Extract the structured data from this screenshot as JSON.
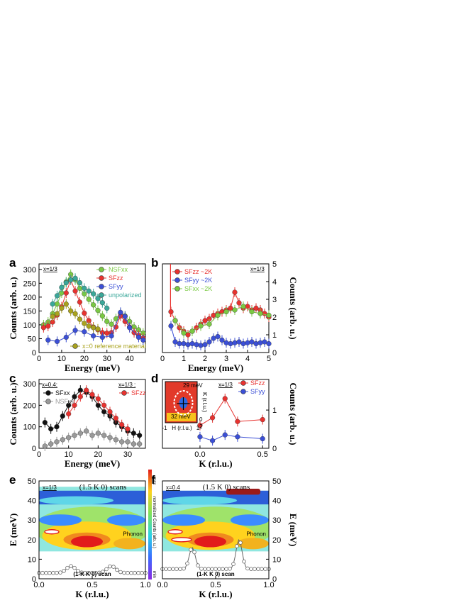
{
  "chart_data": [
    {
      "id": "a",
      "type": "line",
      "letter": "a",
      "tag": "x=1/3",
      "xlabel": "Energy (meV)",
      "ylabel": "Counts (arb. u.)",
      "xlim": [
        0,
        47
      ],
      "ylim": [
        0,
        320
      ],
      "xticks": [
        0,
        10,
        20,
        30,
        40
      ],
      "yticks": [
        0,
        50,
        100,
        150,
        200,
        250,
        300
      ],
      "series": [
        {
          "name": "NSFxx",
          "color": "#7ac943",
          "x": [
            2,
            4,
            6,
            8,
            10,
            12,
            14,
            16,
            18,
            20,
            22,
            24,
            26,
            28,
            30,
            32,
            34,
            36,
            38,
            40,
            42,
            44,
            46
          ],
          "y": [
            100,
            110,
            140,
            175,
            215,
            255,
            282,
            262,
            232,
            212,
            192,
            172,
            152,
            132,
            112,
            102,
            122,
            142,
            132,
            112,
            92,
            82,
            70
          ]
        },
        {
          "name": "SFzz",
          "color": "#e8322f",
          "x": [
            2,
            4,
            6,
            8,
            10,
            12,
            14,
            16,
            18,
            20,
            22,
            24,
            26,
            28,
            30,
            32,
            34,
            36,
            38,
            40,
            42,
            44,
            46
          ],
          "y": [
            90,
            95,
            110,
            135,
            165,
            215,
            262,
            222,
            182,
            142,
            115,
            92,
            82,
            72,
            70,
            72,
            92,
            132,
            112,
            92,
            72,
            62,
            52
          ]
        },
        {
          "name": "SFyy",
          "color": "#3b4fd6",
          "x": [
            4,
            8,
            12,
            16,
            20,
            24,
            28,
            32,
            36,
            38,
            40,
            44,
            46
          ],
          "y": [
            45,
            40,
            55,
            80,
            75,
            60,
            55,
            60,
            145,
            130,
            90,
            55,
            45
          ]
        },
        {
          "name": "unpolarized",
          "color": "#3aa89a",
          "x": [
            6,
            8,
            10,
            12,
            14,
            16,
            18,
            20,
            22,
            24,
            26,
            28,
            30
          ],
          "y": [
            175,
            205,
            235,
            252,
            262,
            268,
            252,
            232,
            222,
            212,
            195,
            180,
            160
          ]
        },
        {
          "name": "x=0 reference material",
          "color": "#a9a21d",
          "x": [
            6,
            8,
            10,
            12,
            14,
            16,
            18,
            20,
            22,
            24,
            26
          ],
          "y": [
            130,
            140,
            160,
            175,
            150,
            140,
            120,
            105,
            95,
            90,
            85
          ]
        }
      ]
    },
    {
      "id": "b",
      "type": "line",
      "letter": "b",
      "tag": "x=1/3",
      "xlabel": "Energy (meV)",
      "ylabel": "Counts (arb. u.)",
      "xlim": [
        0,
        5
      ],
      "ylim": [
        0,
        5
      ],
      "xticks": [
        0,
        1,
        2,
        3,
        4,
        5
      ],
      "yticks": [
        0,
        1,
        2,
        3,
        4,
        5
      ],
      "series": [
        {
          "name": "SFzz ~2K",
          "color": "#e8322f",
          "x": [
            0.4,
            0.6,
            0.8,
            1.0,
            1.2,
            1.4,
            1.6,
            1.8,
            2.0,
            2.2,
            2.4,
            2.6,
            2.8,
            3.0,
            3.2,
            3.4,
            3.6,
            3.8,
            4.0,
            4.2,
            4.4,
            4.6,
            4.8,
            5.0
          ],
          "y": [
            2.3,
            1.8,
            1.4,
            1.2,
            1.0,
            1.2,
            1.4,
            1.6,
            1.8,
            1.9,
            2.1,
            2.2,
            2.3,
            2.4,
            2.5,
            3.4,
            2.8,
            2.5,
            2.6,
            2.4,
            2.5,
            2.4,
            2.2,
            2.0
          ]
        },
        {
          "name": "SFyy ~2K",
          "color": "#3b4fd6",
          "x": [
            0.4,
            0.6,
            0.8,
            1.0,
            1.2,
            1.4,
            1.6,
            1.8,
            2.0,
            2.2,
            2.4,
            2.6,
            2.8,
            3.0,
            3.2,
            3.4,
            3.6,
            3.8,
            4.0,
            4.2,
            4.4,
            4.6,
            4.8,
            5.0
          ],
          "y": [
            1.5,
            0.6,
            0.5,
            0.5,
            0.45,
            0.5,
            0.45,
            0.4,
            0.45,
            0.6,
            0.8,
            0.9,
            0.7,
            0.55,
            0.5,
            0.55,
            0.6,
            0.5,
            0.55,
            0.6,
            0.5,
            0.55,
            0.6,
            0.5
          ]
        },
        {
          "name": "SFxx ~2K",
          "color": "#7ac943",
          "x": [
            0.6,
            1.0,
            1.4,
            1.8,
            2.2,
            2.6,
            3.0,
            3.4,
            3.8,
            4.2,
            4.6,
            5.0
          ],
          "y": [
            1.8,
            1.1,
            1.2,
            1.5,
            1.6,
            2.1,
            2.3,
            2.4,
            2.6,
            2.3,
            2.2,
            2.1
          ]
        }
      ]
    },
    {
      "id": "c",
      "type": "line",
      "letter": "c",
      "tag": "x=0.4:",
      "tag2": "x=1/3 :",
      "xlabel": "Energy (meV)",
      "ylabel": "Counts (arb. u.)",
      "xlim": [
        0,
        36
      ],
      "ylim": [
        0,
        320
      ],
      "xticks": [
        0,
        10,
        20,
        30
      ],
      "yticks": [
        0,
        100,
        200,
        300
      ],
      "series": [
        {
          "name": "SFxx",
          "color": "#111111",
          "x": [
            2,
            4,
            6,
            8,
            10,
            12,
            14,
            16,
            18,
            20,
            22,
            24,
            26,
            28,
            30,
            32,
            34
          ],
          "y": [
            120,
            90,
            100,
            150,
            200,
            240,
            270,
            260,
            240,
            200,
            170,
            150,
            120,
            100,
            80,
            70,
            60
          ]
        },
        {
          "name": "NSFxx",
          "color": "#999999",
          "x": [
            2,
            4,
            6,
            8,
            10,
            12,
            14,
            16,
            18,
            20,
            22,
            24,
            26,
            28,
            30,
            32,
            34
          ],
          "y": [
            10,
            20,
            30,
            40,
            50,
            60,
            70,
            80,
            60,
            70,
            60,
            50,
            40,
            30,
            30,
            20,
            20
          ]
        },
        {
          "name": "SFzz",
          "color": "#e8322f",
          "x": [
            10,
            12,
            14,
            16,
            18,
            20,
            22,
            24,
            26,
            28,
            30
          ],
          "y": [
            160,
            200,
            240,
            270,
            250,
            230,
            200,
            170,
            140,
            110,
            90
          ]
        }
      ]
    },
    {
      "id": "d",
      "type": "line",
      "letter": "d",
      "tag": "x=1/3",
      "xlabel": "K (r.l.u.)",
      "ylabel": "Counts (arb. u.)",
      "xlim": [
        -0.3,
        0.55
      ],
      "ylim": [
        0,
        1.8
      ],
      "xticks": [
        0.0,
        0.5
      ],
      "yticks": [
        0,
        1
      ],
      "series": [
        {
          "name": "SFzz",
          "color": "#e8322f",
          "x": [
            0.0,
            0.1,
            0.2,
            0.3,
            0.5
          ],
          "y": [
            0.6,
            0.8,
            1.3,
            0.7,
            0.75
          ]
        },
        {
          "name": "SFyy",
          "color": "#3b4fd6",
          "x": [
            0.0,
            0.1,
            0.2,
            0.3,
            0.5
          ],
          "y": [
            0.3,
            0.2,
            0.35,
            0.3,
            0.25
          ]
        }
      ],
      "inset": {
        "title": "29 meV",
        "sub": "32 meV",
        "xlabel": "H (r.l.u.)",
        "ylabel": "K (r.l.u.)",
        "xticks": [
          "-1",
          "1"
        ],
        "yticks": [
          "0",
          "2"
        ]
      }
    },
    {
      "id": "e",
      "type": "heatmap",
      "letter": "e",
      "tag": "x=1/3",
      "scan": "(1.5 K 0) scans",
      "xlabel": "K (r.l.u.)",
      "ylabel": "E (meV)",
      "xlim": [
        0,
        1
      ],
      "ylim": [
        0,
        50
      ],
      "xticks": [
        0.0,
        0.5,
        1.0
      ],
      "yticks": [
        0,
        10,
        20,
        30,
        40,
        50
      ],
      "phonon": "Phonon",
      "bottom_scan": "(1-K K 0) scan",
      "colorbar": {
        "label": "normalized Counts (arb. u.)",
        "max": "max",
        "min": "min"
      }
    },
    {
      "id": "f",
      "type": "heatmap",
      "letter": "f",
      "tag": "x=0.4",
      "scan": "(1.5 K 0) scans",
      "xlabel": "K (r.l.u.)",
      "ylabel": "E (meV)",
      "xlim": [
        0,
        1
      ],
      "ylim": [
        0,
        50
      ],
      "xticks": [
        0.0,
        0.5,
        1.0
      ],
      "yticks": [
        0,
        10,
        20,
        30,
        40,
        50
      ],
      "phonon": "Phonon",
      "bottom_scan": "(1-K K 0) scan"
    }
  ]
}
